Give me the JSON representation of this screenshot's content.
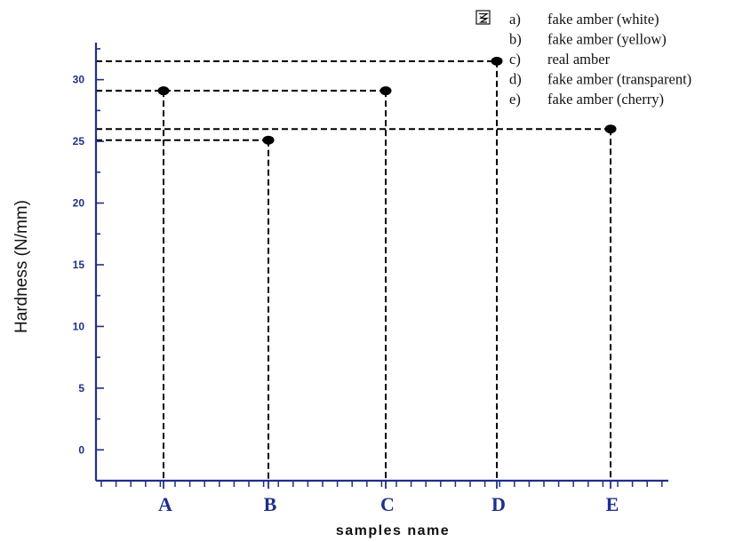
{
  "chart_data": {
    "type": "scatter",
    "categories": [
      "A",
      "B",
      "C",
      "D",
      "E"
    ],
    "values": [
      29.1,
      25.1,
      29.1,
      31.5,
      26.0
    ],
    "xlabel": "samples name",
    "ylabel": "Hardness (N/mm)",
    "ylim": [
      -2.5,
      33
    ],
    "yticks": [
      "0",
      "5",
      "10",
      "15",
      "20",
      "25",
      "30"
    ],
    "grid": false,
    "guide_lines": "dashed",
    "legend": {
      "placement": "top-right",
      "icon": "legend-symbol-icon",
      "entries": [
        {
          "key": "a)",
          "label": "fake amber (white)"
        },
        {
          "key": "b)",
          "label": "fake amber (yellow)"
        },
        {
          "key": "c)",
          "label": "real amber"
        },
        {
          "key": "d)",
          "label": "fake amber (transparent)"
        },
        {
          "key": "e)",
          "label": "fake amber (cherry)"
        }
      ]
    },
    "colors": {
      "axis": "#1f2f8a",
      "tick_labels": "#1f2f8a",
      "points": "#000000",
      "guides": "#000000"
    }
  }
}
